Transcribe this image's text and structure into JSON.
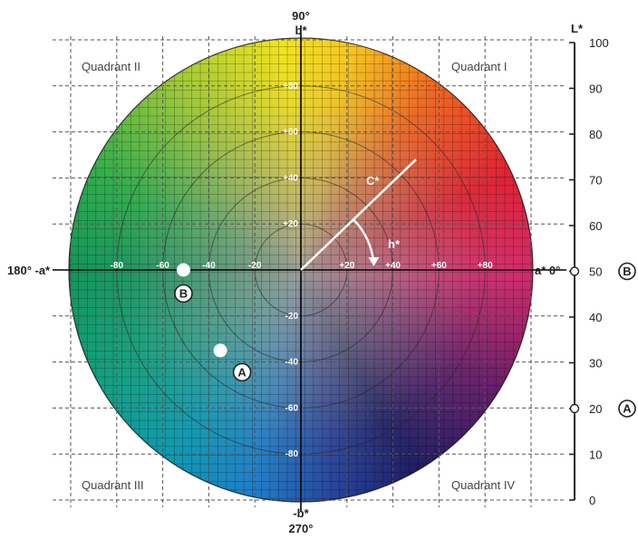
{
  "axis_labels": {
    "top_angle": "90°",
    "top_axis": "b*",
    "bottom_axis": "-b*",
    "bottom_angle": "270°",
    "left": "180° -a*",
    "right": "a* 0°",
    "l_scale_title": "L*"
  },
  "quadrants": [
    "Quadrant II",
    "Quadrant I",
    "Quadrant III",
    "Quadrant IV"
  ],
  "a_ticks": [
    "-80",
    "-60",
    "-40",
    "-20",
    "+20",
    "+40",
    "+60",
    "+80"
  ],
  "a_tick_values": [
    -80,
    -60,
    -40,
    -20,
    20,
    40,
    60,
    80
  ],
  "b_ticks": [
    "+80",
    "+60",
    "+40",
    "+20",
    "-20",
    "-40",
    "-60",
    "-80"
  ],
  "b_tick_values": [
    80,
    60,
    40,
    20,
    -20,
    -40,
    -60,
    -80
  ],
  "vector_labels": {
    "chroma": "C*",
    "hue": "h*"
  },
  "vector": {
    "a": 50,
    "b": 48
  },
  "markers": [
    {
      "label": "A",
      "a": -35,
      "b": -35,
      "L": 20
    },
    {
      "label": "B",
      "a": -51,
      "b": 0,
      "L": 50
    }
  ],
  "l_scale_ticks": [
    "100",
    "90",
    "80",
    "70",
    "60",
    "50",
    "40",
    "30",
    "20",
    "10",
    "0"
  ],
  "l_scale_values": [
    100,
    90,
    80,
    70,
    60,
    50,
    40,
    30,
    20,
    10,
    0
  ]
}
